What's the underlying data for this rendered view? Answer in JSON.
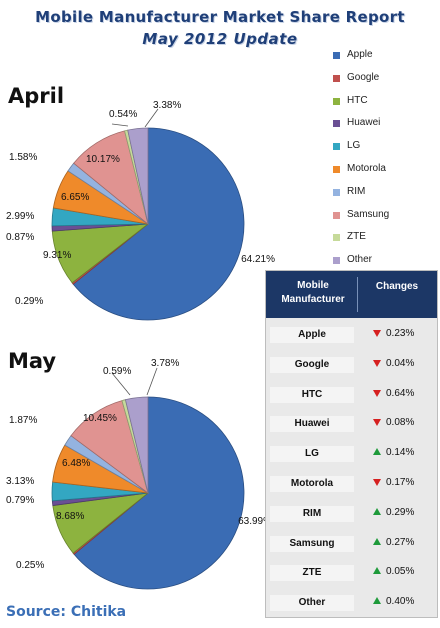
{
  "header": {
    "title": "Mobile Manufacturer Market Share Report",
    "subtitle": "May 2012 Update"
  },
  "legend": {
    "items": [
      {
        "label": "Apple",
        "color": "#3a6cb4"
      },
      {
        "label": "Google",
        "color": "#c0504d"
      },
      {
        "label": "HTC",
        "color": "#8db33f"
      },
      {
        "label": "Huawei",
        "color": "#6a4f94"
      },
      {
        "label": "LG",
        "color": "#33a7c2"
      },
      {
        "label": "Motorola",
        "color": "#ef8a2a"
      },
      {
        "label": "RIM",
        "color": "#94b3e0"
      },
      {
        "label": "Samsung",
        "color": "#e09391"
      },
      {
        "label": "ZTE",
        "color": "#c6da9a"
      },
      {
        "label": "Other",
        "color": "#ab9fcc"
      }
    ]
  },
  "chart_data": [
    {
      "type": "pie",
      "title": "April",
      "categories": [
        "Apple",
        "Google",
        "HTC",
        "Huawei",
        "LG",
        "Motorola",
        "RIM",
        "Samsung",
        "ZTE",
        "Other"
      ],
      "values": [
        64.21,
        0.29,
        9.31,
        0.87,
        2.99,
        6.65,
        1.58,
        10.17,
        0.54,
        3.38
      ],
      "labels": [
        "64.21%",
        "0.29%",
        "9.31%",
        "0.87%",
        "2.99%",
        "6.65%",
        "1.58%",
        "10.17%",
        "0.54%",
        "3.38%"
      ]
    },
    {
      "type": "pie",
      "title": "May",
      "categories": [
        "Apple",
        "Google",
        "HTC",
        "Huawei",
        "LG",
        "Motorola",
        "RIM",
        "Samsung",
        "ZTE",
        "Other"
      ],
      "values": [
        63.99,
        0.25,
        8.68,
        0.79,
        3.13,
        6.48,
        1.87,
        10.45,
        0.59,
        3.78
      ],
      "labels": [
        "63.99%",
        "0.25%",
        "8.68%",
        "0.79%",
        "3.13%",
        "6.48%",
        "1.87%",
        "10.45%",
        "0.59%",
        "3.78%"
      ]
    },
    {
      "type": "table",
      "columns": [
        "Mobile Manufacturer",
        "Changes"
      ],
      "rows": [
        {
          "name": "Apple",
          "change": "0.23%",
          "direction": "down"
        },
        {
          "name": "Google",
          "change": "0.04%",
          "direction": "down"
        },
        {
          "name": "HTC",
          "change": "0.64%",
          "direction": "down"
        },
        {
          "name": "Huawei",
          "change": "0.08%",
          "direction": "down"
        },
        {
          "name": "LG",
          "change": "0.14%",
          "direction": "up"
        },
        {
          "name": "Motorola",
          "change": "0.17%",
          "direction": "down"
        },
        {
          "name": "RIM",
          "change": "0.29%",
          "direction": "up"
        },
        {
          "name": "Samsung",
          "change": "0.27%",
          "direction": "up"
        },
        {
          "name": "ZTE",
          "change": "0.05%",
          "direction": "up"
        },
        {
          "name": "Other",
          "change": "0.40%",
          "direction": "up"
        }
      ]
    }
  ],
  "source": "Source: Chitika"
}
